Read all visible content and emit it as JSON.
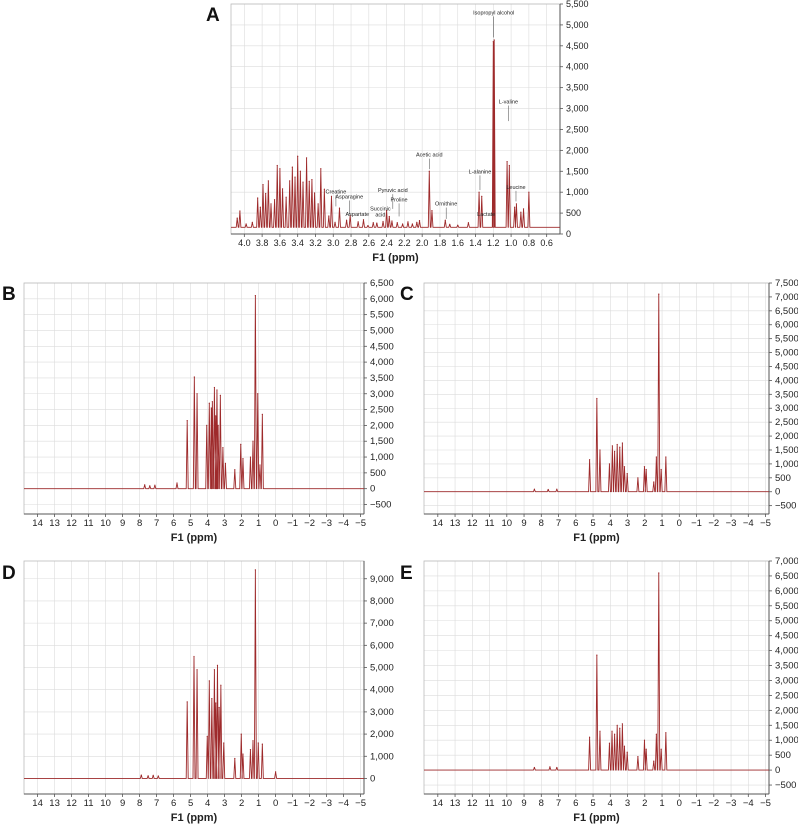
{
  "colors": {
    "trace": "#9e2a2b",
    "grid": "#dcdcdc",
    "axis": "#555555",
    "text": "#222222"
  },
  "chart_data": [
    {
      "panel": "A",
      "type": "line",
      "xlabel": "F1 (ppm)",
      "xlim": [
        4.15,
        0.45
      ],
      "ylim": [
        0,
        5500
      ],
      "x_ticks": [
        4.0,
        3.8,
        3.6,
        3.4,
        3.2,
        3.0,
        2.8,
        2.6,
        2.4,
        2.2,
        2.0,
        1.8,
        1.6,
        1.4,
        1.2,
        1.0,
        0.8,
        0.6
      ],
      "x_tick_labels": [
        "4.0",
        "3.8",
        "3.6",
        "3.4",
        "3.2",
        "3.0",
        "2.8",
        "2.6",
        "2.4",
        "2.2",
        "2.0",
        "1.8",
        "1.6",
        "1.4",
        "1.2",
        "1.0",
        "0.8",
        "0.6"
      ],
      "y_ticks": [
        0,
        500,
        1000,
        1500,
        2000,
        2500,
        3000,
        3500,
        4000,
        4500,
        5000,
        5500
      ],
      "y_tick_labels": [
        "0",
        "500",
        "1,000",
        "1,500",
        "2,000",
        "2,500",
        "3,000",
        "3,500",
        "4,000",
        "4,500",
        "5,000",
        "5,500"
      ],
      "baseline": 160,
      "peaks": [
        {
          "x": 4.08,
          "y": 380
        },
        {
          "x": 4.05,
          "y": 550
        },
        {
          "x": 3.98,
          "y": 240
        },
        {
          "x": 3.91,
          "y": 280
        },
        {
          "x": 3.85,
          "y": 860
        },
        {
          "x": 3.82,
          "y": 640
        },
        {
          "x": 3.79,
          "y": 1180
        },
        {
          "x": 3.76,
          "y": 970
        },
        {
          "x": 3.73,
          "y": 1270
        },
        {
          "x": 3.7,
          "y": 720
        },
        {
          "x": 3.66,
          "y": 820
        },
        {
          "x": 3.63,
          "y": 1640
        },
        {
          "x": 3.6,
          "y": 1560
        },
        {
          "x": 3.57,
          "y": 1080
        },
        {
          "x": 3.53,
          "y": 880
        },
        {
          "x": 3.49,
          "y": 1270
        },
        {
          "x": 3.46,
          "y": 1600
        },
        {
          "x": 3.43,
          "y": 1360
        },
        {
          "x": 3.4,
          "y": 1860
        },
        {
          "x": 3.37,
          "y": 1500
        },
        {
          "x": 3.34,
          "y": 1240
        },
        {
          "x": 3.3,
          "y": 1820
        },
        {
          "x": 3.27,
          "y": 1260
        },
        {
          "x": 3.24,
          "y": 1300
        },
        {
          "x": 3.21,
          "y": 980
        },
        {
          "x": 3.17,
          "y": 720
        },
        {
          "x": 3.14,
          "y": 1560
        },
        {
          "x": 3.1,
          "y": 1070
        },
        {
          "x": 3.05,
          "y": 430
        },
        {
          "x": 3.02,
          "y": 900
        },
        {
          "x": 2.98,
          "y": 280
        },
        {
          "x": 2.93,
          "y": 620
        },
        {
          "x": 2.85,
          "y": 330
        },
        {
          "x": 2.81,
          "y": 440
        },
        {
          "x": 2.72,
          "y": 290
        },
        {
          "x": 2.66,
          "y": 340
        },
        {
          "x": 2.61,
          "y": 200
        },
        {
          "x": 2.55,
          "y": 270
        },
        {
          "x": 2.51,
          "y": 260
        },
        {
          "x": 2.44,
          "y": 300
        },
        {
          "x": 2.4,
          "y": 560
        },
        {
          "x": 2.37,
          "y": 420
        },
        {
          "x": 2.34,
          "y": 310
        },
        {
          "x": 2.28,
          "y": 270
        },
        {
          "x": 2.22,
          "y": 240
        },
        {
          "x": 2.16,
          "y": 290
        },
        {
          "x": 2.11,
          "y": 240
        },
        {
          "x": 2.06,
          "y": 280
        },
        {
          "x": 2.03,
          "y": 320
        },
        {
          "x": 1.92,
          "y": 1500
        },
        {
          "x": 1.89,
          "y": 560
        },
        {
          "x": 1.74,
          "y": 330
        },
        {
          "x": 1.69,
          "y": 230
        },
        {
          "x": 1.6,
          "y": 210
        },
        {
          "x": 1.48,
          "y": 270
        },
        {
          "x": 1.36,
          "y": 1000
        },
        {
          "x": 1.33,
          "y": 900
        },
        {
          "x": 1.2,
          "y": 4600
        },
        {
          "x": 1.19,
          "y": 4640
        },
        {
          "x": 1.045,
          "y": 1730
        },
        {
          "x": 1.02,
          "y": 1640
        },
        {
          "x": 0.96,
          "y": 640
        },
        {
          "x": 0.94,
          "y": 720
        },
        {
          "x": 0.89,
          "y": 520
        },
        {
          "x": 0.86,
          "y": 600
        },
        {
          "x": 0.8,
          "y": 1000
        }
      ],
      "annotations": [
        {
          "label": "Isopropyl alcohol",
          "x": 1.195,
          "y": 5250,
          "tip": 4700
        },
        {
          "label": "L-valine",
          "x": 1.03,
          "y": 3120,
          "tip": 2700
        },
        {
          "label": "Acetic acid",
          "x": 1.92,
          "y": 1850,
          "tip": 1550
        },
        {
          "label": "L-alanine",
          "x": 1.35,
          "y": 1450,
          "tip": 1050
        },
        {
          "label": "Leucine",
          "x": 0.945,
          "y": 1080,
          "tip": 780
        },
        {
          "label": "Creatine",
          "x": 2.97,
          "y": 970,
          "tip": 660
        },
        {
          "label": "Asparagine",
          "x": 2.82,
          "y": 850,
          "tip": 470
        },
        {
          "label": "Pyruvic acid",
          "x": 2.33,
          "y": 1000,
          "tip": 600
        },
        {
          "label": "Proline",
          "x": 2.26,
          "y": 780,
          "tip": 420
        },
        {
          "label": "Ornithine",
          "x": 1.73,
          "y": 680,
          "tip": 360
        },
        {
          "label": "Succinic",
          "x": 2.47,
          "y": 560,
          "tip": 0
        },
        {
          "label": "acid",
          "x": 2.47,
          "y": 420,
          "tip": 0
        },
        {
          "label": "Aspartate",
          "x": 2.73,
          "y": 430,
          "tip": 0
        },
        {
          "label": "Lactate",
          "x": 1.28,
          "y": 430,
          "tip": 0
        }
      ]
    },
    {
      "panel": "B",
      "type": "line",
      "xlabel": "F1 (ppm)",
      "xlim": [
        14.8,
        -5.2
      ],
      "ylim": [
        -800,
        6500
      ],
      "x_ticks": [
        14,
        13,
        12,
        11,
        10,
        9,
        8,
        7,
        6,
        5,
        4,
        3,
        2,
        1,
        0,
        -1,
        -2,
        -3,
        -4,
        -5
      ],
      "x_tick_labels": [
        "14",
        "13",
        "12",
        "11",
        "10",
        "9",
        "8",
        "7",
        "6",
        "5",
        "4",
        "3",
        "2",
        "1",
        "0",
        "−1",
        "−2",
        "−3",
        "−4",
        "−5"
      ],
      "y_ticks": [
        -500,
        0,
        500,
        1000,
        1500,
        2000,
        2500,
        3000,
        3500,
        4000,
        4500,
        5000,
        5500,
        6000,
        6500
      ],
      "y_tick_labels": [
        "−500",
        "0",
        "500",
        "1,000",
        "1,500",
        "2,000",
        "2,500",
        "3,000",
        "3,500",
        "4,000",
        "4,500",
        "5,000",
        "5,500",
        "6,000",
        "6,500"
      ],
      "baseline": 0,
      "peaks": [
        {
          "x": 7.7,
          "y": 120
        },
        {
          "x": 7.4,
          "y": 90
        },
        {
          "x": 7.1,
          "y": 110
        },
        {
          "x": 5.8,
          "y": 180
        },
        {
          "x": 5.2,
          "y": 2150
        },
        {
          "x": 4.78,
          "y": 3530
        },
        {
          "x": 4.62,
          "y": 3000
        },
        {
          "x": 4.05,
          "y": 2000
        },
        {
          "x": 3.9,
          "y": 2700
        },
        {
          "x": 3.78,
          "y": 2550
        },
        {
          "x": 3.72,
          "y": 2750
        },
        {
          "x": 3.6,
          "y": 3200
        },
        {
          "x": 3.52,
          "y": 2300
        },
        {
          "x": 3.45,
          "y": 3120
        },
        {
          "x": 3.38,
          "y": 2000
        },
        {
          "x": 3.25,
          "y": 2950
        },
        {
          "x": 3.1,
          "y": 1300
        },
        {
          "x": 2.95,
          "y": 800
        },
        {
          "x": 2.4,
          "y": 600
        },
        {
          "x": 2.05,
          "y": 1400
        },
        {
          "x": 1.92,
          "y": 950
        },
        {
          "x": 1.48,
          "y": 1000
        },
        {
          "x": 1.33,
          "y": 1500
        },
        {
          "x": 1.19,
          "y": 6100
        },
        {
          "x": 1.05,
          "y": 3000
        },
        {
          "x": 0.92,
          "y": 750
        },
        {
          "x": 0.78,
          "y": 2350
        }
      ]
    },
    {
      "panel": "C",
      "type": "line",
      "xlabel": "F1 (ppm)",
      "xlim": [
        14.8,
        -5.2
      ],
      "ylim": [
        -800,
        7500
      ],
      "x_ticks": [
        14,
        13,
        12,
        11,
        10,
        9,
        8,
        7,
        6,
        5,
        4,
        3,
        2,
        1,
        0,
        -1,
        -2,
        -3,
        -4,
        -5
      ],
      "x_tick_labels": [
        "14",
        "13",
        "12",
        "11",
        "10",
        "9",
        "8",
        "7",
        "6",
        "5",
        "4",
        "3",
        "2",
        "1",
        "0",
        "−1",
        "−2",
        "−3",
        "−4",
        "−5"
      ],
      "y_ticks": [
        -500,
        0,
        500,
        1000,
        1500,
        2000,
        2500,
        3000,
        3500,
        4000,
        4500,
        5000,
        5500,
        6000,
        6500,
        7000,
        7500
      ],
      "y_tick_labels": [
        "−500",
        "0",
        "500",
        "1,000",
        "1,500",
        "2,000",
        "2,500",
        "3,000",
        "3,500",
        "4,000",
        "4,500",
        "5,000",
        "5,500",
        "6,000",
        "6,500",
        "7,000",
        "7,500"
      ],
      "baseline": 0,
      "peaks": [
        {
          "x": 8.4,
          "y": 90
        },
        {
          "x": 7.6,
          "y": 80
        },
        {
          "x": 7.1,
          "y": 90
        },
        {
          "x": 5.2,
          "y": 1150
        },
        {
          "x": 4.78,
          "y": 3350
        },
        {
          "x": 4.6,
          "y": 1500
        },
        {
          "x": 4.05,
          "y": 1000
        },
        {
          "x": 3.88,
          "y": 1650
        },
        {
          "x": 3.75,
          "y": 1450
        },
        {
          "x": 3.6,
          "y": 1700
        },
        {
          "x": 3.45,
          "y": 1600
        },
        {
          "x": 3.3,
          "y": 1750
        },
        {
          "x": 3.18,
          "y": 900
        },
        {
          "x": 3.02,
          "y": 650
        },
        {
          "x": 2.4,
          "y": 500
        },
        {
          "x": 2.02,
          "y": 900
        },
        {
          "x": 1.92,
          "y": 800
        },
        {
          "x": 1.48,
          "y": 350
        },
        {
          "x": 1.33,
          "y": 1250
        },
        {
          "x": 1.19,
          "y": 7100
        },
        {
          "x": 1.05,
          "y": 800
        },
        {
          "x": 0.78,
          "y": 1250
        }
      ]
    },
    {
      "panel": "D",
      "type": "line",
      "xlabel": "F1 (ppm)",
      "xlim": [
        14.8,
        -5.2
      ],
      "ylim": [
        -700,
        9800
      ],
      "x_ticks": [
        14,
        13,
        12,
        11,
        10,
        9,
        8,
        7,
        6,
        5,
        4,
        3,
        2,
        1,
        0,
        -1,
        -2,
        -3,
        -4,
        -5
      ],
      "x_tick_labels": [
        "14",
        "13",
        "12",
        "11",
        "10",
        "9",
        "8",
        "7",
        "6",
        "5",
        "4",
        "3",
        "2",
        "1",
        "0",
        "−1",
        "−2",
        "−3",
        "−4",
        "−5"
      ],
      "y_ticks": [
        0,
        1000,
        2000,
        3000,
        4000,
        5000,
        6000,
        7000,
        8000,
        9000
      ],
      "y_tick_labels": [
        "0",
        "1,000",
        "2,000",
        "3,000",
        "4,000",
        "5,000",
        "6,000",
        "7,000",
        "8,000",
        "9,000"
      ],
      "baseline": 0,
      "peaks": [
        {
          "x": 7.9,
          "y": 150
        },
        {
          "x": 7.5,
          "y": 120
        },
        {
          "x": 7.2,
          "y": 140
        },
        {
          "x": 6.9,
          "y": 110
        },
        {
          "x": 5.2,
          "y": 3450
        },
        {
          "x": 4.8,
          "y": 5500
        },
        {
          "x": 4.62,
          "y": 4900
        },
        {
          "x": 4.02,
          "y": 1900
        },
        {
          "x": 3.9,
          "y": 4400
        },
        {
          "x": 3.75,
          "y": 3600
        },
        {
          "x": 3.6,
          "y": 4900
        },
        {
          "x": 3.52,
          "y": 3400
        },
        {
          "x": 3.42,
          "y": 5100
        },
        {
          "x": 3.32,
          "y": 3200
        },
        {
          "x": 3.22,
          "y": 4200
        },
        {
          "x": 3.05,
          "y": 1600
        },
        {
          "x": 2.4,
          "y": 900
        },
        {
          "x": 2.02,
          "y": 2000
        },
        {
          "x": 1.92,
          "y": 1100
        },
        {
          "x": 1.48,
          "y": 1300
        },
        {
          "x": 1.33,
          "y": 1700
        },
        {
          "x": 1.19,
          "y": 9400
        },
        {
          "x": 1.02,
          "y": 1600
        },
        {
          "x": 0.78,
          "y": 1550
        },
        {
          "x": 0.0,
          "y": 300
        }
      ]
    },
    {
      "panel": "E",
      "type": "line",
      "xlabel": "F1 (ppm)",
      "xlim": [
        14.8,
        -5.2
      ],
      "ylim": [
        -800,
        7000
      ],
      "x_ticks": [
        14,
        13,
        12,
        11,
        10,
        9,
        8,
        7,
        6,
        5,
        4,
        3,
        2,
        1,
        0,
        -1,
        -2,
        -3,
        -4,
        -5
      ],
      "x_tick_labels": [
        "14",
        "13",
        "12",
        "11",
        "10",
        "9",
        "8",
        "7",
        "6",
        "5",
        "4",
        "3",
        "2",
        "1",
        "0",
        "−1",
        "−2",
        "−3",
        "−4",
        "−5"
      ],
      "y_ticks": [
        -500,
        0,
        500,
        1000,
        1500,
        2000,
        2500,
        3000,
        3500,
        4000,
        4500,
        5000,
        5500,
        6000,
        6500,
        7000
      ],
      "y_tick_labels": [
        "−500",
        "0",
        "500",
        "1,000",
        "1,500",
        "2,000",
        "2,500",
        "3,000",
        "3,500",
        "4,000",
        "4,500",
        "5,000",
        "5,500",
        "6,000",
        "6,500",
        "7,000"
      ],
      "baseline": 0,
      "peaks": [
        {
          "x": 8.4,
          "y": 90
        },
        {
          "x": 7.5,
          "y": 110
        },
        {
          "x": 7.1,
          "y": 90
        },
        {
          "x": 5.2,
          "y": 1100
        },
        {
          "x": 4.78,
          "y": 3850
        },
        {
          "x": 4.6,
          "y": 1300
        },
        {
          "x": 4.05,
          "y": 900
        },
        {
          "x": 3.9,
          "y": 1300
        },
        {
          "x": 3.75,
          "y": 1200
        },
        {
          "x": 3.6,
          "y": 1500
        },
        {
          "x": 3.45,
          "y": 1400
        },
        {
          "x": 3.3,
          "y": 1550
        },
        {
          "x": 3.18,
          "y": 800
        },
        {
          "x": 3.02,
          "y": 600
        },
        {
          "x": 2.4,
          "y": 450
        },
        {
          "x": 2.02,
          "y": 1000
        },
        {
          "x": 1.92,
          "y": 700
        },
        {
          "x": 1.48,
          "y": 300
        },
        {
          "x": 1.33,
          "y": 1200
        },
        {
          "x": 1.19,
          "y": 6600
        },
        {
          "x": 1.05,
          "y": 700
        },
        {
          "x": 0.78,
          "y": 1250
        }
      ]
    }
  ],
  "panel_labels": {
    "a": "A",
    "b": "B",
    "c": "C",
    "d": "D",
    "e": "E"
  }
}
